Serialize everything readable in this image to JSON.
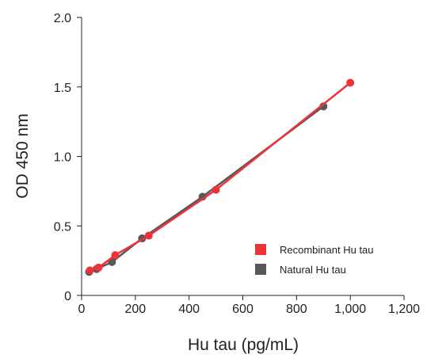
{
  "chart_data": {
    "type": "line",
    "xlabel": "Hu tau (pg/mL)",
    "ylabel": "OD 450 nm",
    "xlim": [
      0,
      1200
    ],
    "ylim": [
      0,
      2.0
    ],
    "x_ticks": [
      0,
      200,
      400,
      600,
      800,
      1000,
      1200
    ],
    "x_tick_labels": [
      "0",
      "200",
      "400",
      "600",
      "800",
      "1,000",
      "1,200"
    ],
    "y_ticks": [
      0,
      0.5,
      1.0,
      1.5,
      2.0
    ],
    "y_tick_labels": [
      "0",
      "0.5",
      "1.0",
      "1.5",
      "2.0"
    ],
    "grid": false,
    "legend_position": "bottom-right",
    "series": [
      {
        "name": "Recombinant Hu tau",
        "color": "#ee3338",
        "points": [
          {
            "x": 31,
            "y": 0.18
          },
          {
            "x": 63,
            "y": 0.2
          },
          {
            "x": 125,
            "y": 0.29
          },
          {
            "x": 250,
            "y": 0.43
          },
          {
            "x": 500,
            "y": 0.76
          },
          {
            "x": 1000,
            "y": 1.53
          }
        ]
      },
      {
        "name": "Natural Hu tau",
        "color": "#57585a",
        "points": [
          {
            "x": 28,
            "y": 0.17
          },
          {
            "x": 56,
            "y": 0.19
          },
          {
            "x": 113,
            "y": 0.24
          },
          {
            "x": 225,
            "y": 0.41
          },
          {
            "x": 450,
            "y": 0.71
          },
          {
            "x": 900,
            "y": 1.36
          }
        ]
      }
    ]
  }
}
